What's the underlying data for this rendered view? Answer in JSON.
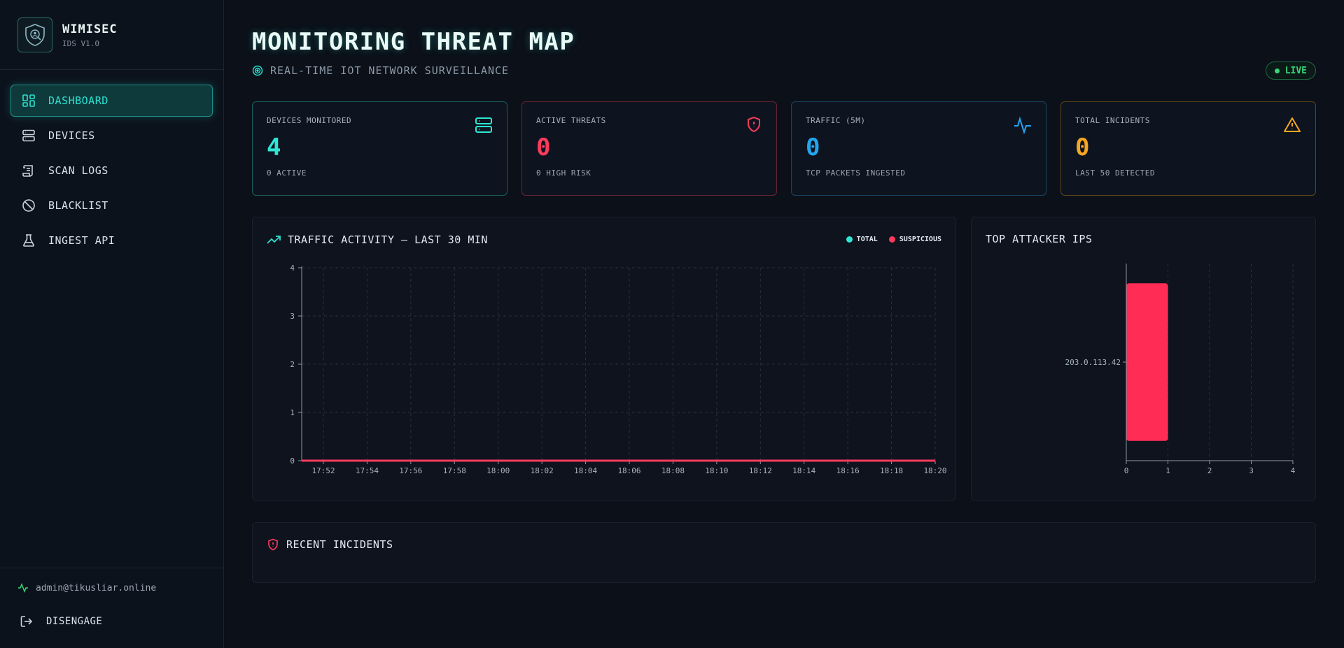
{
  "brand": {
    "name": "WIMISEC",
    "version": "IDS V1.0"
  },
  "nav": [
    {
      "label": "DASHBOARD",
      "icon": "dashboard-icon",
      "active": true
    },
    {
      "label": "DEVICES",
      "icon": "server-icon",
      "active": false
    },
    {
      "label": "SCAN LOGS",
      "icon": "scroll-icon",
      "active": false
    },
    {
      "label": "BLACKLIST",
      "icon": "ban-icon",
      "active": false
    },
    {
      "label": "INGEST API",
      "icon": "flask-icon",
      "active": false
    }
  ],
  "user": {
    "email": "admin@tikusliar.online",
    "logout_label": "DISENGAGE"
  },
  "header": {
    "title": "MONITORING THREAT MAP",
    "subtitle": "REAL-TIME IOT NETWORK SURVEILLANCE",
    "live_label": "LIVE"
  },
  "stats": [
    {
      "label": "DEVICES MONITORED",
      "value": "4",
      "sub": "0 ACTIVE",
      "color": "#2ee6d3",
      "border": "#1b5e5c",
      "icon": "server-icon"
    },
    {
      "label": "ACTIVE THREATS",
      "value": "0",
      "sub": "0 HIGH RISK",
      "color": "#ff3b5c",
      "border": "#6b2234",
      "icon": "shield-alert-icon"
    },
    {
      "label": "TRAFFIC (5M)",
      "value": "0",
      "sub": "TCP PACKETS INGESTED",
      "color": "#22a6f2",
      "border": "#1a4560",
      "icon": "activity-icon"
    },
    {
      "label": "TOTAL INCIDENTS",
      "value": "0",
      "sub": "LAST 50 DETECTED",
      "color": "#f5a623",
      "border": "#5e4418",
      "icon": "warning-icon"
    }
  ],
  "traffic_panel": {
    "title": "TRAFFIC ACTIVITY — LAST 30 MIN"
  },
  "attackers_panel": {
    "title": "TOP ATTACKER IPS"
  },
  "incidents_panel": {
    "title": "RECENT INCIDENTS"
  },
  "chart_data": [
    {
      "type": "line",
      "title": "TRAFFIC ACTIVITY — LAST 30 MIN",
      "x": [
        "17:52",
        "17:54",
        "17:56",
        "17:58",
        "18:00",
        "18:02",
        "18:04",
        "18:06",
        "18:08",
        "18:10",
        "18:12",
        "18:14",
        "18:16",
        "18:18",
        "18:20"
      ],
      "series": [
        {
          "name": "TOTAL",
          "color": "#2ee6d3",
          "values": [
            0,
            0,
            0,
            0,
            0,
            0,
            0,
            0,
            0,
            0,
            0,
            0,
            0,
            0,
            0
          ]
        },
        {
          "name": "SUSPICIOUS",
          "color": "#ff3b5c",
          "values": [
            0,
            0,
            0,
            0,
            0,
            0,
            0,
            0,
            0,
            0,
            0,
            0,
            0,
            0,
            0
          ]
        }
      ],
      "ylim": [
        0,
        4
      ],
      "yticks": [
        0,
        1,
        2,
        3,
        4
      ],
      "grid": true,
      "legend": "top-right"
    },
    {
      "type": "bar",
      "orientation": "horizontal",
      "title": "TOP ATTACKER IPS",
      "categories": [
        "203.0.113.42"
      ],
      "values": [
        1
      ],
      "color": "#ff2d55",
      "xlim": [
        0,
        4
      ],
      "xticks": [
        0,
        1,
        2,
        3,
        4
      ],
      "grid": true
    }
  ]
}
